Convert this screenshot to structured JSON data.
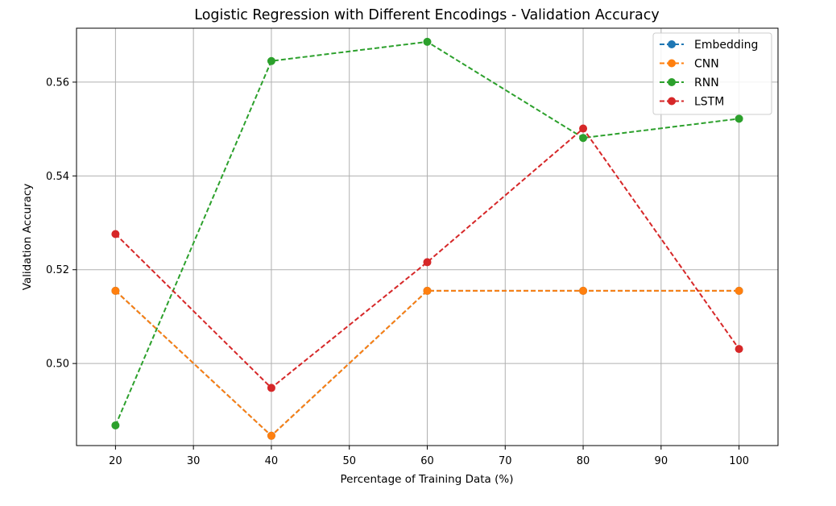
{
  "chart_data": {
    "type": "line",
    "title": "Logistic Regression with Different Encodings - Validation Accuracy",
    "xlabel": "Percentage of Training Data (%)",
    "ylabel": "Validation Accuracy",
    "x": [
      20,
      40,
      60,
      80,
      100
    ],
    "xlim": [
      15,
      105
    ],
    "ylim": [
      0.4825,
      0.5715
    ],
    "xticks": [
      "20",
      "30",
      "40",
      "50",
      "60",
      "70",
      "80",
      "90",
      "100"
    ],
    "yticks": [
      "0.50",
      "0.52",
      "0.54",
      "0.56"
    ],
    "grid": true,
    "legend_position": "top-right",
    "line_style": "dashed",
    "marker": "circle",
    "series": [
      {
        "name": "Embedding",
        "color": "#1f77b4",
        "values": [
          0.5155,
          0.4846,
          0.5155,
          0.5155,
          0.5155
        ]
      },
      {
        "name": "CNN",
        "color": "#ff7f0e",
        "values": [
          0.5155,
          0.4846,
          0.5155,
          0.5155,
          0.5155
        ]
      },
      {
        "name": "RNN",
        "color": "#2ca02c",
        "values": [
          0.4868,
          0.5645,
          0.5686,
          0.5481,
          0.5522
        ]
      },
      {
        "name": "LSTM",
        "color": "#d62728",
        "values": [
          0.5276,
          0.4948,
          0.5216,
          0.5501,
          0.5031
        ]
      }
    ]
  }
}
